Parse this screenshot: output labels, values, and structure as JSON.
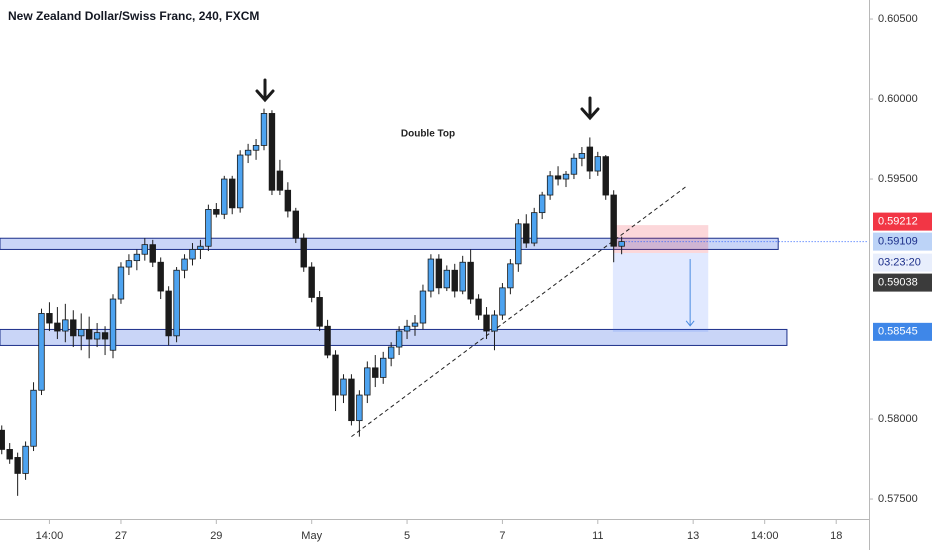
{
  "chart_data": {
    "type": "candlestick",
    "title": "New Zealand Dollar/Swiss Franc, 240, FXCM",
    "annotation": "Double Top",
    "xlim": [
      -0.22,
      109
    ],
    "xticks": [
      {
        "value": 6,
        "label": "14:00"
      },
      {
        "value": 15,
        "label": "27"
      },
      {
        "value": 27,
        "label": "29"
      },
      {
        "value": 39,
        "label": "May"
      },
      {
        "value": 51,
        "label": "5"
      },
      {
        "value": 63,
        "label": "7"
      },
      {
        "value": 75,
        "label": "11"
      },
      {
        "value": 87,
        "label": "13"
      },
      {
        "value": 96,
        "label": "14:00"
      },
      {
        "value": 105,
        "label": "18"
      }
    ],
    "ylim": [
      0.57369,
      0.60619
    ],
    "yticks": [
      {
        "value": 0.605,
        "label": "0.60500"
      },
      {
        "value": 0.6,
        "label": "0.60000"
      },
      {
        "value": 0.595,
        "label": "0.59500"
      },
      {
        "value": 0.58,
        "label": "0.58000"
      },
      {
        "value": 0.575,
        "label": "0.57500"
      }
    ],
    "bull_color": "#4da3f0",
    "bear_color": "#1b1b1b",
    "open": [
      0.5793,
      0.5781,
      0.5776,
      0.5766,
      0.5783,
      0.5818,
      0.5866,
      0.586,
      0.5855,
      0.5862,
      0.5852,
      0.5856,
      0.585,
      0.5854,
      0.5843,
      0.5875,
      0.5895,
      0.5899,
      0.5903,
      0.5909,
      0.5898,
      0.588,
      0.5852,
      0.5893,
      0.59,
      0.5906,
      0.5908,
      0.5931,
      0.5928,
      0.595,
      0.5932,
      0.5965,
      0.5968,
      0.5971,
      0.5991,
      0.5955,
      0.5943,
      0.593,
      0.5913,
      0.5895,
      0.5876,
      0.5858,
      0.584,
      0.5815,
      0.5825,
      0.5799,
      0.5815,
      0.5832,
      0.5826,
      0.5838,
      0.5845,
      0.5855,
      0.5858,
      0.586,
      0.588,
      0.59,
      0.5882,
      0.5893,
      0.588,
      0.5898,
      0.5875,
      0.5865,
      0.5855,
      0.5865,
      0.5882,
      0.5897,
      0.5922,
      0.591,
      0.5929,
      0.594,
      0.5952,
      0.595,
      0.5953,
      0.5963,
      0.597,
      0.5955,
      0.5964,
      0.594,
      0.5908
    ],
    "high": [
      0.5796,
      0.5785,
      0.5779,
      0.5786,
      0.5823,
      0.5869,
      0.5873,
      0.587,
      0.5872,
      0.5868,
      0.5866,
      0.5864,
      0.586,
      0.5858,
      0.5878,
      0.5898,
      0.5903,
      0.5906,
      0.5913,
      0.5912,
      0.5901,
      0.5883,
      0.5895,
      0.5903,
      0.591,
      0.5912,
      0.5934,
      0.5935,
      0.5952,
      0.5952,
      0.5968,
      0.5972,
      0.5975,
      0.5994,
      0.5993,
      0.5962,
      0.5948,
      0.5932,
      0.5916,
      0.5898,
      0.588,
      0.5862,
      0.5843,
      0.5828,
      0.5828,
      0.5818,
      0.5836,
      0.584,
      0.5842,
      0.5848,
      0.5858,
      0.5862,
      0.5865,
      0.5884,
      0.5903,
      0.5903,
      0.5896,
      0.5897,
      0.5902,
      0.5906,
      0.5878,
      0.587,
      0.5868,
      0.5885,
      0.59,
      0.5925,
      0.5928,
      0.5932,
      0.5942,
      0.5955,
      0.5958,
      0.5955,
      0.5966,
      0.597,
      0.5976,
      0.5967,
      0.5965,
      0.5943,
      0.5914
    ],
    "low": [
      0.5778,
      0.5772,
      0.5752,
      0.5762,
      0.578,
      0.5815,
      0.5855,
      0.585,
      0.5848,
      0.5845,
      0.5843,
      0.5838,
      0.5845,
      0.584,
      0.5838,
      0.5872,
      0.589,
      0.5893,
      0.5899,
      0.5895,
      0.5875,
      0.5846,
      0.5848,
      0.5888,
      0.5896,
      0.59,
      0.5905,
      0.5926,
      0.5925,
      0.5928,
      0.5929,
      0.596,
      0.5962,
      0.5968,
      0.594,
      0.594,
      0.5926,
      0.591,
      0.5892,
      0.5873,
      0.5855,
      0.5838,
      0.5805,
      0.581,
      0.5796,
      0.5789,
      0.581,
      0.582,
      0.5822,
      0.5833,
      0.584,
      0.585,
      0.5852,
      0.5856,
      0.5876,
      0.5878,
      0.588,
      0.5876,
      0.5878,
      0.5872,
      0.5862,
      0.585,
      0.5843,
      0.5862,
      0.5878,
      0.5892,
      0.5907,
      0.5908,
      0.5925,
      0.5937,
      0.5946,
      0.5945,
      0.595,
      0.5958,
      0.595,
      0.5952,
      0.5937,
      0.5898,
      0.5903
    ],
    "close": [
      0.5781,
      0.5775,
      0.5766,
      0.5783,
      0.5818,
      0.5866,
      0.586,
      0.5855,
      0.5862,
      0.5852,
      0.5856,
      0.585,
      0.5854,
      0.585,
      0.5875,
      0.5895,
      0.5899,
      0.5903,
      0.5909,
      0.5898,
      0.588,
      0.5852,
      0.5893,
      0.59,
      0.5906,
      0.5908,
      0.5931,
      0.5928,
      0.595,
      0.5932,
      0.5965,
      0.5968,
      0.5971,
      0.5991,
      0.5943,
      0.5943,
      0.593,
      0.5913,
      0.5895,
      0.5876,
      0.5858,
      0.584,
      0.5815,
      0.5825,
      0.5799,
      0.5815,
      0.5832,
      0.5826,
      0.5838,
      0.5845,
      0.5855,
      0.5858,
      0.586,
      0.588,
      0.59,
      0.5882,
      0.5893,
      0.588,
      0.5898,
      0.5875,
      0.5865,
      0.5855,
      0.5865,
      0.5882,
      0.5897,
      0.5922,
      0.591,
      0.5929,
      0.594,
      0.5952,
      0.595,
      0.5953,
      0.5963,
      0.5966,
      0.5955,
      0.5964,
      0.594,
      0.5908,
      0.59109
    ],
    "zones": [
      {
        "top": 0.5913,
        "bottom": 0.5906,
        "x_end": 97.7
      },
      {
        "top": 0.5856,
        "bottom": 0.5846,
        "x_end": 98.8
      }
    ],
    "trendline": {
      "x": [
        44,
        86.3
      ],
      "y": [
        0.5789,
        0.5946
      ]
    },
    "position": {
      "x_start": 76.9,
      "x_end": 88.9,
      "entry": 0.59038,
      "stop": 0.59212,
      "target": 0.58545
    },
    "countdown": "03:23:20"
  }
}
